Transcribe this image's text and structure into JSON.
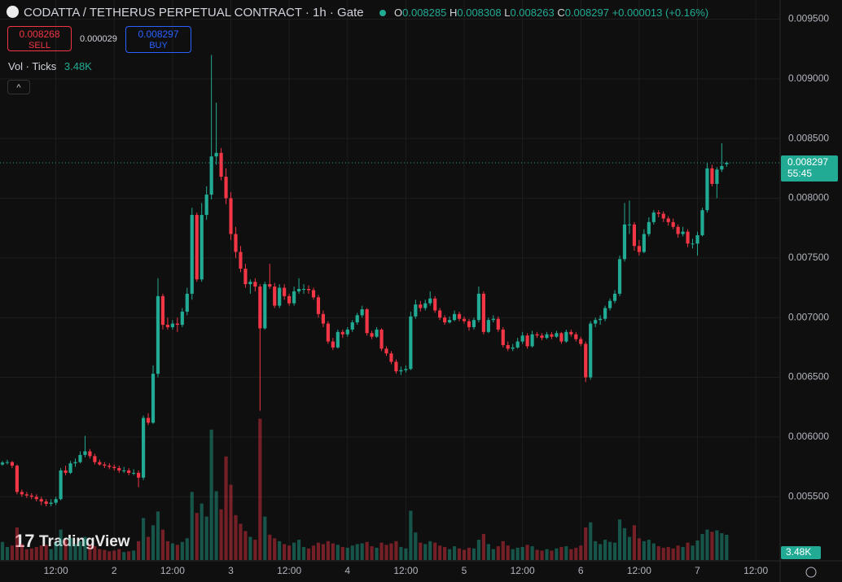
{
  "header": {
    "title": "CODATTA / TETHERUS PERPETUAL CONTRACT · 1h · Gate",
    "o": "O",
    "h": "H",
    "l": "L",
    "c": "C",
    "change": "+0.000013 (+0.16%)",
    "sell_price": "0.008268",
    "sell": "SELL",
    "spread": "0.000029",
    "buy_price": "0.008297",
    "buy": "BUY",
    "vol_title": "Vol · Ticks",
    "countdown": "55:45",
    "logo": "TradingView"
  },
  "chart_data": {
    "type": "candlestick",
    "up_color": "#22ab94",
    "down_color": "#f23645",
    "grid": true,
    "last_volume_label": "3.48K",
    "xlim": [
      -0.5,
      159.5
    ],
    "ylim": [
      0.00497,
      0.00966
    ],
    "volume_lim": [
      0,
      20000
    ],
    "xticks": [
      {
        "value": 11,
        "label": "12:00"
      },
      {
        "value": 23,
        "label": "2"
      },
      {
        "value": 35,
        "label": "12:00"
      },
      {
        "value": 47,
        "label": "3"
      },
      {
        "value": 59,
        "label": "12:00"
      },
      {
        "value": 71,
        "label": "4"
      },
      {
        "value": 83,
        "label": "12:00"
      },
      {
        "value": 95,
        "label": "5"
      },
      {
        "value": 107,
        "label": "12:00"
      },
      {
        "value": 119,
        "label": "6"
      },
      {
        "value": 131,
        "label": "12:00"
      },
      {
        "value": 143,
        "label": "7"
      },
      {
        "value": 155,
        "label": "12:00"
      }
    ],
    "yticks": [
      {
        "value": 0.0055,
        "label": "0.005500"
      },
      {
        "value": 0.006,
        "label": "0.006000"
      },
      {
        "value": 0.0065,
        "label": "0.006500"
      },
      {
        "value": 0.007,
        "label": "0.007000"
      },
      {
        "value": 0.0075,
        "label": "0.007500"
      },
      {
        "value": 0.008,
        "label": "0.008000"
      },
      {
        "value": 0.0085,
        "label": "0.008500"
      },
      {
        "value": 0.009,
        "label": "0.009000"
      },
      {
        "value": 0.0095,
        "label": "0.009500"
      }
    ],
    "candles": [
      [
        0.00577,
        0.0058,
        0.00576,
        0.005786,
        2500
      ],
      [
        0.005786,
        0.00581,
        0.00577,
        0.00579,
        1800
      ],
      [
        0.00579,
        0.0058,
        0.00574,
        0.00576,
        2000
      ],
      [
        0.00576,
        0.00577,
        0.00552,
        0.00554,
        4500
      ],
      [
        0.00554,
        0.00556,
        0.0055,
        0.00552,
        2200
      ],
      [
        0.00552,
        0.00554,
        0.00549,
        0.00551,
        1500
      ],
      [
        0.00551,
        0.00553,
        0.00548,
        0.0055,
        1600
      ],
      [
        0.0055,
        0.00552,
        0.00546,
        0.00548,
        1800
      ],
      [
        0.00548,
        0.0055,
        0.00543,
        0.00546,
        2000
      ],
      [
        0.00546,
        0.00548,
        0.00542,
        0.00544,
        2100
      ],
      [
        0.00544,
        0.00548,
        0.00542,
        0.00545,
        1500
      ],
      [
        0.00545,
        0.0055,
        0.00543,
        0.00548,
        2400
      ],
      [
        0.00548,
        0.00574,
        0.00547,
        0.00572,
        4200
      ],
      [
        0.00572,
        0.00576,
        0.00568,
        0.0057,
        2800
      ],
      [
        0.0057,
        0.0058,
        0.00569,
        0.00578,
        3000
      ],
      [
        0.00578,
        0.00582,
        0.00575,
        0.00579,
        2200
      ],
      [
        0.00579,
        0.00588,
        0.00578,
        0.00585,
        2600
      ],
      [
        0.00585,
        0.00601,
        0.00583,
        0.00588,
        3200
      ],
      [
        0.00588,
        0.0059,
        0.00582,
        0.00584,
        2100
      ],
      [
        0.00584,
        0.00586,
        0.00577,
        0.00579,
        1900
      ],
      [
        0.00579,
        0.00581,
        0.00576,
        0.00577,
        1500
      ],
      [
        0.00577,
        0.00579,
        0.00574,
        0.00576,
        1400
      ],
      [
        0.00576,
        0.00578,
        0.00573,
        0.00575,
        1200
      ],
      [
        0.00575,
        0.00577,
        0.00572,
        0.00574,
        1300
      ],
      [
        0.00574,
        0.00576,
        0.0057,
        0.00572,
        1500
      ],
      [
        0.00572,
        0.00575,
        0.0057,
        0.00572,
        1100
      ],
      [
        0.00572,
        0.00574,
        0.00568,
        0.0057,
        1200
      ],
      [
        0.0057,
        0.00573,
        0.00568,
        0.0057,
        1300
      ],
      [
        0.0057,
        0.00572,
        0.00558,
        0.00566,
        2600
      ],
      [
        0.00566,
        0.00618,
        0.00564,
        0.00616,
        5800
      ],
      [
        0.00616,
        0.0062,
        0.0061,
        0.00612,
        3200
      ],
      [
        0.00612,
        0.0066,
        0.00611,
        0.00653,
        4800
      ],
      [
        0.00653,
        0.00733,
        0.0065,
        0.00718,
        6700
      ],
      [
        0.00718,
        0.0072,
        0.0069,
        0.00694,
        4200
      ],
      [
        0.00694,
        0.007,
        0.0069,
        0.00692,
        2600
      ],
      [
        0.00692,
        0.00698,
        0.0069,
        0.00695,
        2300
      ],
      [
        0.00695,
        0.007,
        0.00688,
        0.00694,
        2100
      ],
      [
        0.00694,
        0.00708,
        0.00692,
        0.00705,
        2500
      ],
      [
        0.00705,
        0.00725,
        0.00702,
        0.0072,
        3000
      ],
      [
        0.0072,
        0.00792,
        0.00715,
        0.00786,
        9400
      ],
      [
        0.00786,
        0.00788,
        0.0073,
        0.00732,
        6500
      ],
      [
        0.00732,
        0.00796,
        0.0073,
        0.00786,
        7800
      ],
      [
        0.00786,
        0.0081,
        0.00782,
        0.00803,
        6000
      ],
      [
        0.00803,
        0.0092,
        0.00799,
        0.00835,
        18000
      ],
      [
        0.00835,
        0.0088,
        0.00828,
        0.00838,
        9500
      ],
      [
        0.00838,
        0.00842,
        0.00815,
        0.00818,
        7000
      ],
      [
        0.00818,
        0.00825,
        0.00795,
        0.008,
        14300
      ],
      [
        0.008,
        0.00805,
        0.00765,
        0.0077,
        10400
      ],
      [
        0.0077,
        0.00776,
        0.0075,
        0.00755,
        6200
      ],
      [
        0.00755,
        0.0076,
        0.00738,
        0.00741,
        5000
      ],
      [
        0.00741,
        0.00745,
        0.00725,
        0.00728,
        4000
      ],
      [
        0.00728,
        0.00732,
        0.0072,
        0.0073,
        3200
      ],
      [
        0.0073,
        0.00733,
        0.00722,
        0.00726,
        2800
      ],
      [
        0.00726,
        0.00728,
        0.00622,
        0.00691,
        19500
      ],
      [
        0.00691,
        0.0073,
        0.0069,
        0.00728,
        6000
      ],
      [
        0.00728,
        0.00745,
        0.00724,
        0.00726,
        3500
      ],
      [
        0.00726,
        0.00729,
        0.00708,
        0.0071,
        3000
      ],
      [
        0.0071,
        0.00728,
        0.00708,
        0.00725,
        2600
      ],
      [
        0.00725,
        0.00728,
        0.00715,
        0.00718,
        2200
      ],
      [
        0.00718,
        0.0072,
        0.0071,
        0.00712,
        2000
      ],
      [
        0.00712,
        0.00726,
        0.0071,
        0.00722,
        2400
      ],
      [
        0.00722,
        0.00733,
        0.0072,
        0.00724,
        2800
      ],
      [
        0.00724,
        0.00728,
        0.0072,
        0.00724,
        1800
      ],
      [
        0.00724,
        0.00727,
        0.0072,
        0.00723,
        1600
      ],
      [
        0.00723,
        0.00725,
        0.00715,
        0.00717,
        2000
      ],
      [
        0.00717,
        0.00719,
        0.007,
        0.00703,
        2400
      ],
      [
        0.00703,
        0.00706,
        0.00692,
        0.00695,
        2200
      ],
      [
        0.00695,
        0.00697,
        0.00678,
        0.0068,
        2600
      ],
      [
        0.0068,
        0.00683,
        0.00673,
        0.00675,
        2300
      ],
      [
        0.00675,
        0.0069,
        0.00674,
        0.00688,
        2100
      ],
      [
        0.00688,
        0.0069,
        0.00683,
        0.00686,
        1800
      ],
      [
        0.00686,
        0.00692,
        0.00684,
        0.0069,
        1700
      ],
      [
        0.0069,
        0.00698,
        0.00688,
        0.00696,
        2000
      ],
      [
        0.00696,
        0.00704,
        0.00694,
        0.00702,
        2200
      ],
      [
        0.00702,
        0.0071,
        0.007,
        0.00707,
        2300
      ],
      [
        0.00707,
        0.00708,
        0.00685,
        0.00687,
        2500
      ],
      [
        0.00687,
        0.00689,
        0.00682,
        0.00684,
        1900
      ],
      [
        0.00684,
        0.00692,
        0.00683,
        0.0069,
        1700
      ],
      [
        0.0069,
        0.00691,
        0.00672,
        0.00674,
        2400
      ],
      [
        0.00674,
        0.00676,
        0.00668,
        0.0067,
        2100
      ],
      [
        0.0067,
        0.00672,
        0.00661,
        0.00663,
        2300
      ],
      [
        0.00663,
        0.00665,
        0.00653,
        0.00655,
        2600
      ],
      [
        0.00655,
        0.00659,
        0.00652,
        0.00656,
        1800
      ],
      [
        0.00656,
        0.0066,
        0.00654,
        0.00657,
        1600
      ],
      [
        0.00657,
        0.00705,
        0.00656,
        0.00701,
        6800
      ],
      [
        0.00701,
        0.00715,
        0.00699,
        0.00711,
        3800
      ],
      [
        0.00711,
        0.00714,
        0.00705,
        0.00708,
        2400
      ],
      [
        0.00708,
        0.00715,
        0.00706,
        0.00712,
        2200
      ],
      [
        0.00712,
        0.00722,
        0.0071,
        0.00716,
        2600
      ],
      [
        0.00716,
        0.00718,
        0.00704,
        0.00706,
        2400
      ],
      [
        0.00706,
        0.00708,
        0.00698,
        0.007,
        2000
      ],
      [
        0.007,
        0.00702,
        0.00694,
        0.00696,
        1800
      ],
      [
        0.00696,
        0.00701,
        0.00695,
        0.00698,
        1500
      ],
      [
        0.00698,
        0.00706,
        0.00697,
        0.00703,
        1900
      ],
      [
        0.00703,
        0.00705,
        0.00697,
        0.00699,
        1600
      ],
      [
        0.00699,
        0.00701,
        0.00695,
        0.00697,
        1400
      ],
      [
        0.00697,
        0.00699,
        0.00689,
        0.00692,
        1700
      ],
      [
        0.00692,
        0.007,
        0.0069,
        0.00698,
        1600
      ],
      [
        0.00698,
        0.00726,
        0.00696,
        0.0072,
        2800
      ],
      [
        0.0072,
        0.00722,
        0.00686,
        0.00688,
        3600
      ],
      [
        0.00688,
        0.007,
        0.00687,
        0.00698,
        2200
      ],
      [
        0.00698,
        0.00702,
        0.00696,
        0.00699,
        1500
      ],
      [
        0.00699,
        0.00701,
        0.00688,
        0.0069,
        1900
      ],
      [
        0.0069,
        0.00692,
        0.00675,
        0.00677,
        2600
      ],
      [
        0.00677,
        0.0068,
        0.00672,
        0.00674,
        2000
      ],
      [
        0.00674,
        0.00678,
        0.00672,
        0.00675,
        1500
      ],
      [
        0.00675,
        0.00683,
        0.00674,
        0.0068,
        1700
      ],
      [
        0.0068,
        0.00688,
        0.00678,
        0.00685,
        1800
      ],
      [
        0.00685,
        0.00687,
        0.00674,
        0.00676,
        2100
      ],
      [
        0.00676,
        0.00689,
        0.00675,
        0.00686,
        1900
      ],
      [
        0.00686,
        0.00688,
        0.00683,
        0.00685,
        1400
      ],
      [
        0.00685,
        0.00687,
        0.00681,
        0.00683,
        1300
      ],
      [
        0.00683,
        0.00688,
        0.00682,
        0.00686,
        1500
      ],
      [
        0.00686,
        0.00688,
        0.00682,
        0.00684,
        1300
      ],
      [
        0.00684,
        0.00689,
        0.00683,
        0.00687,
        1600
      ],
      [
        0.00687,
        0.00688,
        0.00678,
        0.0068,
        1800
      ],
      [
        0.0068,
        0.0069,
        0.00679,
        0.00688,
        1900
      ],
      [
        0.00688,
        0.0069,
        0.00684,
        0.00686,
        1500
      ],
      [
        0.00686,
        0.00688,
        0.0068,
        0.00682,
        1700
      ],
      [
        0.00682,
        0.00684,
        0.00676,
        0.00678,
        2000
      ],
      [
        0.00678,
        0.0068,
        0.00646,
        0.0065,
        4500
      ],
      [
        0.0065,
        0.00697,
        0.00648,
        0.00695,
        5200
      ],
      [
        0.00695,
        0.007,
        0.00692,
        0.00698,
        2600
      ],
      [
        0.00698,
        0.00702,
        0.00694,
        0.00699,
        2200
      ],
      [
        0.00699,
        0.0071,
        0.00697,
        0.00708,
        2800
      ],
      [
        0.00708,
        0.00716,
        0.00706,
        0.00714,
        2500
      ],
      [
        0.00714,
        0.00723,
        0.00712,
        0.0072,
        2400
      ],
      [
        0.0072,
        0.00752,
        0.00718,
        0.00749,
        5600
      ],
      [
        0.00749,
        0.00796,
        0.00747,
        0.00778,
        4400
      ],
      [
        0.00778,
        0.00798,
        0.0077,
        0.00778,
        3200
      ],
      [
        0.00778,
        0.0078,
        0.00756,
        0.0076,
        4800
      ],
      [
        0.0076,
        0.00765,
        0.00752,
        0.00755,
        3000
      ],
      [
        0.00755,
        0.00774,
        0.00754,
        0.0077,
        2600
      ],
      [
        0.0077,
        0.00784,
        0.00768,
        0.0078,
        2800
      ],
      [
        0.0078,
        0.0079,
        0.00778,
        0.00788,
        2300
      ],
      [
        0.00788,
        0.0079,
        0.00784,
        0.00787,
        1900
      ],
      [
        0.00787,
        0.00789,
        0.0078,
        0.00783,
        1700
      ],
      [
        0.00783,
        0.00785,
        0.00777,
        0.0078,
        1800
      ],
      [
        0.0078,
        0.00783,
        0.00774,
        0.00776,
        1600
      ],
      [
        0.00776,
        0.00778,
        0.00767,
        0.0077,
        2000
      ],
      [
        0.0077,
        0.00776,
        0.00768,
        0.00772,
        1800
      ],
      [
        0.00772,
        0.00774,
        0.00759,
        0.00762,
        2400
      ],
      [
        0.00762,
        0.00766,
        0.00758,
        0.00762,
        2000
      ],
      [
        0.00762,
        0.00772,
        0.00752,
        0.00769,
        2700
      ],
      [
        0.00769,
        0.00792,
        0.00768,
        0.0079,
        3600
      ],
      [
        0.0079,
        0.0083,
        0.00788,
        0.00825,
        4200
      ],
      [
        0.00825,
        0.00828,
        0.0081,
        0.00812,
        3900
      ],
      [
        0.00812,
        0.00826,
        0.008,
        0.00824,
        4100
      ],
      [
        0.00824,
        0.00846,
        0.00822,
        0.00827,
        3700
      ],
      [
        0.008285,
        0.008308,
        0.008263,
        0.008297,
        3480
      ]
    ]
  }
}
